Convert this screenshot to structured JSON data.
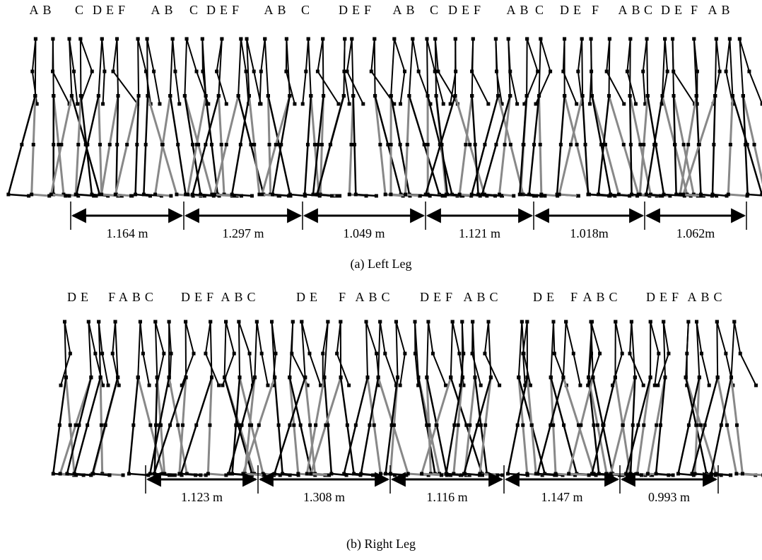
{
  "panels": [
    {
      "phase_labels": [
        "AB",
        "C",
        "DEF",
        "AB",
        "C",
        "DEF",
        "AB",
        "C",
        "DEF",
        "AB",
        "C",
        "DEF",
        "AB",
        "C",
        "DE",
        "F",
        "AB",
        "C",
        "DE",
        "F",
        "AB"
      ],
      "strides": [
        "1.164 m",
        "1.297 m",
        "1.049 m",
        "1.121 m",
        "1.018m",
        "1.062m"
      ],
      "caption": "(a) Left Leg"
    },
    {
      "phase_labels": [
        "DE",
        "FABC",
        "DEF",
        "ABC",
        "DE",
        "F",
        "ABC",
        "DEF",
        "ABC",
        "DE",
        "F",
        "ABC",
        "DEF",
        "ABC"
      ],
      "strides": [
        "1.123 m",
        "1.308 m",
        "1.116 m",
        "1.147 m",
        "0.993 m"
      ],
      "caption": "(b) Right Leg"
    }
  ]
}
